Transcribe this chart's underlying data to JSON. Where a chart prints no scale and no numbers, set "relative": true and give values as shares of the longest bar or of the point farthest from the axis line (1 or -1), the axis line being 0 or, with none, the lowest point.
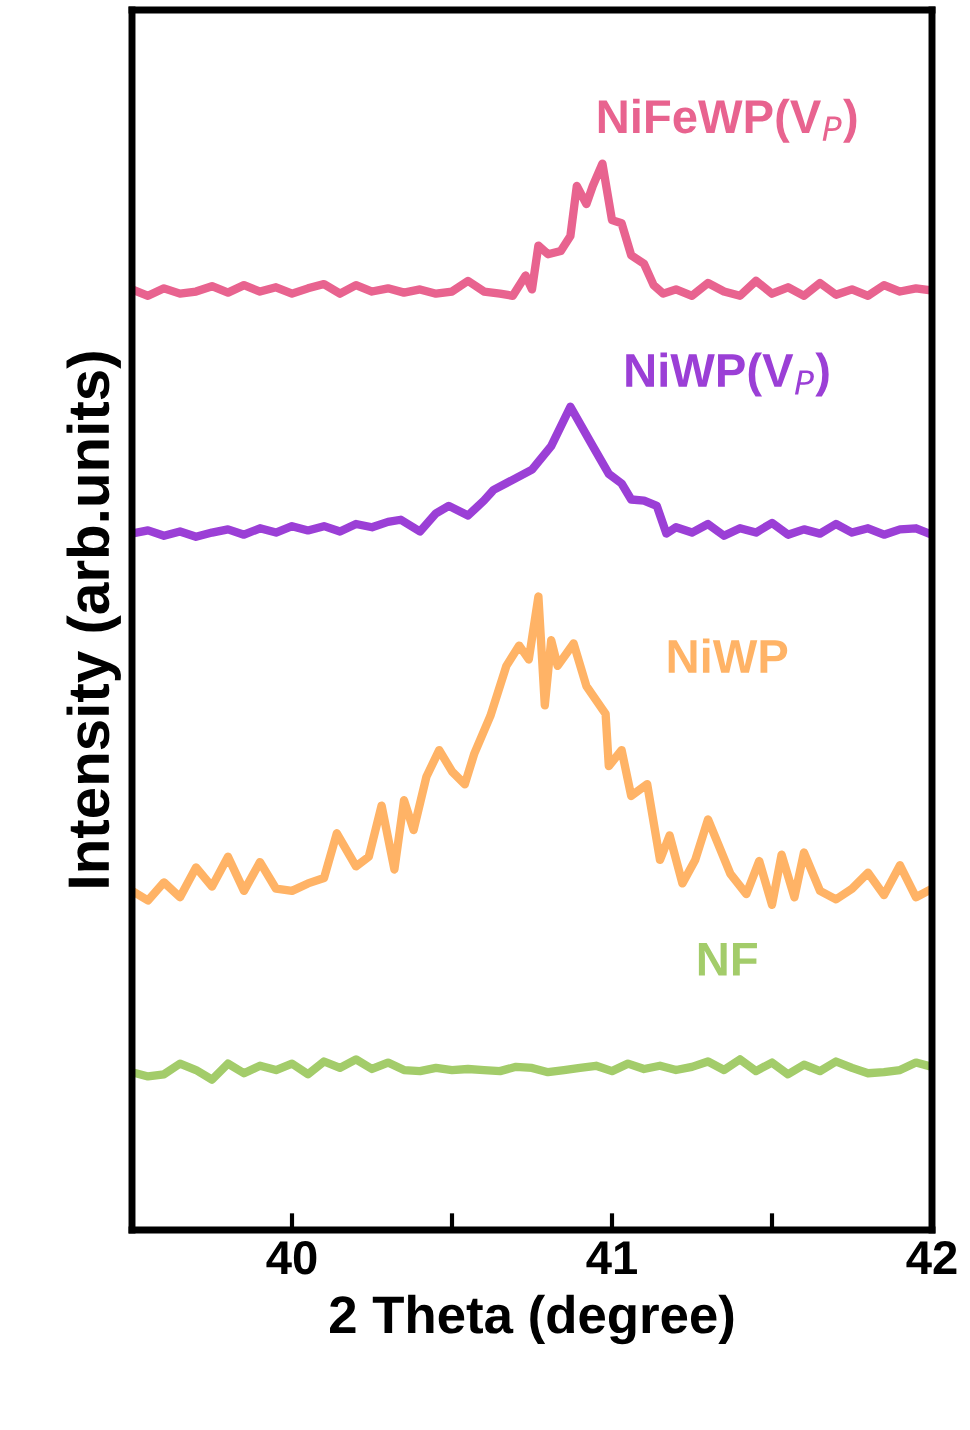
{
  "chart_data": {
    "type": "line",
    "relative": true,
    "xlabel": "2 Theta (degree)",
    "ylabel": "Intensity (arb.units)",
    "xlim": [
      39.5,
      42
    ],
    "xticks": [
      40,
      {
        "value": 40.5,
        "label": null
      },
      41,
      {
        "value": 41.5,
        "label": null
      },
      42
    ],
    "grid": false,
    "legend": false,
    "marker": "none",
    "line_style": "solid",
    "series": [
      {
        "name": "NiFeWP(V$_{P}$)",
        "color": "#e8638f",
        "x": [
          39.5,
          39.55,
          39.6,
          39.65,
          39.7,
          39.75,
          39.8,
          39.85,
          39.9,
          39.95,
          40.0,
          40.05,
          40.1,
          40.15,
          40.2,
          40.25,
          40.3,
          40.35,
          40.4,
          40.45,
          40.5,
          40.55,
          40.6,
          40.65,
          40.69,
          40.73,
          40.75,
          40.77,
          40.8,
          40.84,
          40.87,
          40.89,
          40.92,
          40.94,
          40.97,
          41.0,
          41.03,
          41.06,
          41.1,
          41.13,
          41.16,
          41.2,
          41.25,
          41.3,
          41.35,
          41.4,
          41.45,
          41.5,
          41.55,
          41.6,
          41.65,
          41.7,
          41.75,
          41.8,
          41.85,
          41.9,
          41.95,
          42.0
        ],
        "values": [
          0.882,
          0.876,
          0.883,
          0.878,
          0.88,
          0.885,
          0.879,
          0.886,
          0.88,
          0.884,
          0.878,
          0.883,
          0.887,
          0.878,
          0.886,
          0.88,
          0.883,
          0.879,
          0.882,
          0.878,
          0.88,
          0.89,
          0.88,
          0.878,
          0.876,
          0.895,
          0.882,
          0.923,
          0.915,
          0.918,
          0.932,
          0.979,
          0.962,
          0.979,
          1.0,
          0.947,
          0.944,
          0.914,
          0.906,
          0.886,
          0.878,
          0.882,
          0.876,
          0.888,
          0.88,
          0.876,
          0.89,
          0.878,
          0.884,
          0.876,
          0.888,
          0.877,
          0.882,
          0.876,
          0.886,
          0.88,
          0.883,
          0.881
        ]
      },
      {
        "name": "NiWP(V$_{P}$)",
        "color": "#9b3fd6",
        "x": [
          39.5,
          39.55,
          39.6,
          39.65,
          39.7,
          39.75,
          39.8,
          39.85,
          39.9,
          39.95,
          40.0,
          40.05,
          40.1,
          40.15,
          40.2,
          40.25,
          40.3,
          40.34,
          40.4,
          40.45,
          40.49,
          40.55,
          40.6,
          40.63,
          40.7,
          40.75,
          40.81,
          40.87,
          40.94,
          40.99,
          41.03,
          41.06,
          41.1,
          41.14,
          41.17,
          41.2,
          41.25,
          41.3,
          41.35,
          41.4,
          41.45,
          41.5,
          41.55,
          41.6,
          41.65,
          41.7,
          41.75,
          41.8,
          41.85,
          41.9,
          41.95,
          42.0
        ],
        "values": [
          0.653,
          0.656,
          0.651,
          0.655,
          0.65,
          0.654,
          0.657,
          0.652,
          0.658,
          0.654,
          0.66,
          0.656,
          0.66,
          0.655,
          0.662,
          0.659,
          0.664,
          0.666,
          0.655,
          0.672,
          0.679,
          0.67,
          0.684,
          0.694,
          0.705,
          0.713,
          0.735,
          0.772,
          0.735,
          0.709,
          0.7,
          0.685,
          0.684,
          0.679,
          0.653,
          0.659,
          0.654,
          0.662,
          0.651,
          0.658,
          0.654,
          0.663,
          0.652,
          0.657,
          0.653,
          0.662,
          0.654,
          0.658,
          0.652,
          0.657,
          0.658,
          0.652
        ]
      },
      {
        "name": "NiWP",
        "color": "#ffb366",
        "x": [
          39.5,
          39.55,
          39.6,
          39.65,
          39.7,
          39.75,
          39.8,
          39.85,
          39.9,
          39.95,
          40.0,
          40.05,
          40.1,
          40.14,
          40.2,
          40.24,
          40.28,
          40.32,
          40.35,
          40.38,
          40.42,
          40.46,
          40.5,
          40.54,
          40.57,
          40.62,
          40.67,
          40.71,
          40.74,
          40.77,
          40.79,
          40.81,
          40.83,
          40.88,
          40.92,
          40.98,
          40.99,
          41.03,
          41.06,
          41.11,
          41.15,
          41.18,
          41.22,
          41.26,
          41.3,
          41.37,
          41.42,
          41.46,
          41.5,
          41.53,
          41.57,
          41.6,
          41.65,
          41.7,
          41.75,
          41.8,
          41.85,
          41.9,
          41.95,
          42.0
        ],
        "values": [
          0.318,
          0.309,
          0.326,
          0.312,
          0.34,
          0.322,
          0.35,
          0.318,
          0.345,
          0.32,
          0.318,
          0.325,
          0.33,
          0.372,
          0.341,
          0.35,
          0.398,
          0.338,
          0.403,
          0.375,
          0.425,
          0.45,
          0.43,
          0.418,
          0.447,
          0.482,
          0.529,
          0.548,
          0.535,
          0.594,
          0.492,
          0.553,
          0.529,
          0.55,
          0.51,
          0.484,
          0.435,
          0.45,
          0.407,
          0.418,
          0.347,
          0.37,
          0.325,
          0.347,
          0.385,
          0.334,
          0.315,
          0.346,
          0.305,
          0.352,
          0.312,
          0.354,
          0.318,
          0.31,
          0.32,
          0.335,
          0.314,
          0.342,
          0.312,
          0.32
        ]
      },
      {
        "name": "NF",
        "color": "#a3cc6a",
        "x": [
          39.5,
          39.55,
          39.6,
          39.65,
          39.7,
          39.75,
          39.8,
          39.85,
          39.9,
          39.95,
          40.0,
          40.05,
          40.1,
          40.15,
          40.2,
          40.25,
          40.3,
          40.35,
          40.4,
          40.45,
          40.5,
          40.55,
          40.6,
          40.65,
          40.7,
          40.75,
          40.8,
          40.85,
          40.9,
          40.95,
          41.0,
          41.05,
          41.1,
          41.15,
          41.2,
          41.25,
          41.3,
          41.35,
          41.4,
          41.45,
          41.5,
          41.55,
          41.6,
          41.65,
          41.7,
          41.75,
          41.8,
          41.85,
          41.9,
          41.95,
          42.0
        ],
        "values": [
          0.148,
          0.144,
          0.146,
          0.156,
          0.15,
          0.141,
          0.156,
          0.147,
          0.154,
          0.15,
          0.156,
          0.146,
          0.158,
          0.152,
          0.16,
          0.151,
          0.157,
          0.15,
          0.149,
          0.152,
          0.15,
          0.151,
          0.15,
          0.149,
          0.153,
          0.152,
          0.148,
          0.15,
          0.152,
          0.154,
          0.149,
          0.156,
          0.151,
          0.154,
          0.15,
          0.153,
          0.158,
          0.15,
          0.16,
          0.149,
          0.157,
          0.146,
          0.155,
          0.149,
          0.158,
          0.152,
          0.147,
          0.148,
          0.15,
          0.157,
          0.153
        ]
      }
    ]
  }
}
